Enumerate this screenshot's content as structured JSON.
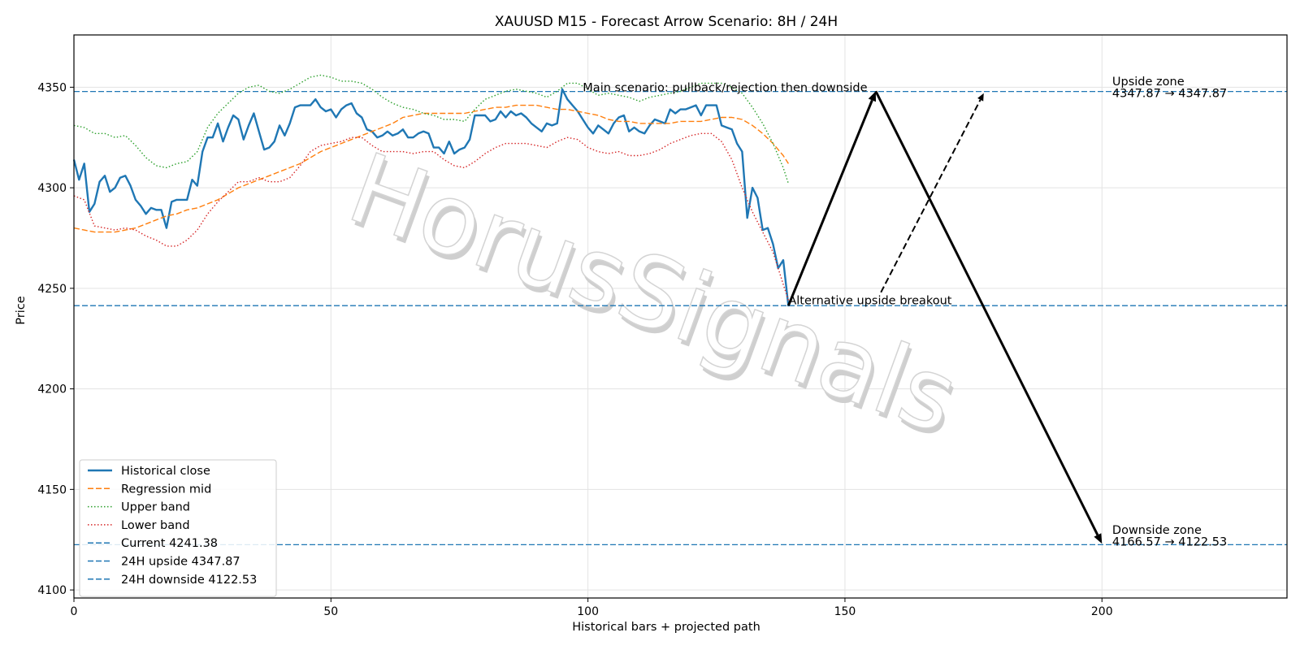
{
  "chart_data": {
    "type": "line",
    "title": "XAUUSD M15 - Forecast Arrow Scenario: 8H / 24H",
    "xlabel": "Historical bars + projected path",
    "ylabel": "Price",
    "xlim": [
      0,
      236
    ],
    "ylim": [
      4096,
      4376
    ],
    "xticks": [
      0,
      50,
      100,
      150,
      200
    ],
    "yticks": [
      4100,
      4150,
      4200,
      4250,
      4300,
      4350
    ],
    "grid": true,
    "legend_position": "lower-left",
    "watermark": "HorusSignals",
    "series": [
      {
        "name": "Historical close",
        "color": "#1f77b4",
        "style": "solid",
        "x": [
          0,
          1,
          2,
          3,
          4,
          5,
          6,
          7,
          8,
          9,
          10,
          11,
          12,
          13,
          14,
          15,
          16,
          17,
          18,
          19,
          20,
          21,
          22,
          23,
          24,
          25,
          26,
          27,
          28,
          29,
          30,
          31,
          32,
          33,
          34,
          35,
          36,
          37,
          38,
          39,
          40,
          41,
          42,
          43,
          44,
          45,
          46,
          47,
          48,
          49,
          50,
          51,
          52,
          53,
          54,
          55,
          56,
          57,
          58,
          59,
          60,
          61,
          62,
          63,
          64,
          65,
          66,
          67,
          68,
          69,
          70,
          71,
          72,
          73,
          74,
          75,
          76,
          77,
          78,
          79,
          80,
          81,
          82,
          83,
          84,
          85,
          86,
          87,
          88,
          89,
          90,
          91,
          92,
          93,
          94,
          95,
          96,
          97,
          98,
          99,
          100,
          101,
          102,
          103,
          104,
          105,
          106,
          107,
          108,
          109,
          110,
          111,
          112,
          113,
          114,
          115,
          116,
          117,
          118,
          119,
          120,
          121,
          122,
          123,
          124,
          125,
          126,
          127,
          128,
          129,
          130,
          131,
          132,
          133,
          134,
          135,
          136,
          137,
          138,
          139
        ],
        "values": [
          4314,
          4304,
          4312,
          4288,
          4292,
          4303,
          4306,
          4298,
          4300,
          4305,
          4306,
          4301,
          4294,
          4291,
          4287,
          4290,
          4289,
          4289,
          4280,
          4293,
          4294,
          4294,
          4294,
          4304,
          4301,
          4318,
          4325,
          4325,
          4332,
          4323,
          4330,
          4336,
          4334,
          4324,
          4331,
          4337,
          4328,
          4319,
          4320,
          4323,
          4331,
          4326,
          4332,
          4340,
          4341,
          4341,
          4341,
          4344,
          4340,
          4338,
          4339,
          4335,
          4339,
          4341,
          4342,
          4337,
          4335,
          4329,
          4328,
          4325,
          4326,
          4328,
          4326,
          4327,
          4329,
          4325,
          4325,
          4327,
          4328,
          4327,
          4320,
          4320,
          4317,
          4323,
          4317,
          4319,
          4320,
          4324,
          4336,
          4336,
          4336,
          4333,
          4334,
          4338,
          4335,
          4338,
          4336,
          4337,
          4335,
          4332,
          4330,
          4328,
          4332,
          4331,
          4332,
          4349,
          4344,
          4341,
          4338,
          4334,
          4330,
          4327,
          4331,
          4329,
          4327,
          4332,
          4335,
          4336,
          4328,
          4330,
          4328,
          4327,
          4331,
          4334,
          4333,
          4332,
          4339,
          4337,
          4339,
          4339,
          4340,
          4341,
          4336,
          4341,
          4341,
          4341,
          4331,
          4330,
          4329,
          4322,
          4318,
          4285,
          4300,
          4295,
          4279,
          4280,
          4272,
          4260,
          4264,
          4241
        ]
      },
      {
        "name": "Regression mid",
        "color": "#ff7f0e",
        "style": "dashed",
        "x": [
          0,
          2,
          4,
          6,
          8,
          10,
          12,
          14,
          16,
          18,
          20,
          22,
          24,
          26,
          28,
          30,
          32,
          34,
          36,
          38,
          40,
          42,
          44,
          46,
          48,
          50,
          52,
          54,
          56,
          58,
          60,
          62,
          64,
          66,
          68,
          70,
          72,
          74,
          76,
          78,
          80,
          82,
          84,
          86,
          88,
          90,
          92,
          94,
          96,
          98,
          100,
          102,
          104,
          106,
          108,
          110,
          112,
          114,
          116,
          118,
          120,
          122,
          124,
          126,
          128,
          130,
          132,
          134,
          136,
          138,
          139
        ],
        "values": [
          4280,
          4279,
          4278,
          4278,
          4278,
          4279,
          4280,
          4282,
          4284,
          4286,
          4287,
          4289,
          4290,
          4292,
          4294,
          4297,
          4300,
          4302,
          4304,
          4306,
          4308,
          4310,
          4312,
          4315,
          4318,
          4320,
          4322,
          4324,
          4326,
          4328,
          4330,
          4332,
          4335,
          4336,
          4337,
          4337,
          4337,
          4337,
          4337,
          4338,
          4339,
          4340,
          4340,
          4341,
          4341,
          4341,
          4340,
          4339,
          4339,
          4338,
          4337,
          4336,
          4334,
          4333,
          4333,
          4332,
          4332,
          4332,
          4332,
          4333,
          4333,
          4333,
          4334,
          4335,
          4335,
          4334,
          4331,
          4327,
          4322,
          4316,
          4312
        ]
      },
      {
        "name": "Upper band",
        "color": "#2ca02c",
        "style": "dotted",
        "x": [
          0,
          2,
          4,
          6,
          8,
          10,
          12,
          14,
          16,
          18,
          20,
          22,
          24,
          26,
          28,
          30,
          32,
          34,
          36,
          38,
          40,
          42,
          44,
          46,
          48,
          50,
          52,
          54,
          56,
          58,
          60,
          62,
          64,
          66,
          68,
          70,
          72,
          74,
          76,
          78,
          80,
          82,
          84,
          86,
          88,
          90,
          92,
          94,
          96,
          98,
          100,
          102,
          104,
          106,
          108,
          110,
          112,
          114,
          116,
          118,
          120,
          122,
          124,
          126,
          128,
          130,
          132,
          134,
          136,
          138,
          139
        ],
        "values": [
          4331,
          4330,
          4327,
          4327,
          4325,
          4326,
          4321,
          4315,
          4311,
          4310,
          4312,
          4313,
          4318,
          4330,
          4337,
          4342,
          4347,
          4350,
          4351,
          4348,
          4347,
          4349,
          4352,
          4355,
          4356,
          4355,
          4353,
          4353,
          4352,
          4349,
          4345,
          4342,
          4340,
          4339,
          4337,
          4336,
          4334,
          4334,
          4333,
          4339,
          4344,
          4346,
          4348,
          4349,
          4348,
          4347,
          4345,
          4348,
          4352,
          4352,
          4349,
          4346,
          4347,
          4346,
          4345,
          4343,
          4345,
          4346,
          4347,
          4348,
          4350,
          4352,
          4352,
          4352,
          4350,
          4347,
          4340,
          4332,
          4322,
          4310,
          4302
        ]
      },
      {
        "name": "Lower band",
        "color": "#d62728",
        "style": "dotted",
        "x": [
          0,
          2,
          4,
          6,
          8,
          10,
          12,
          14,
          16,
          18,
          20,
          22,
          24,
          26,
          28,
          30,
          32,
          34,
          36,
          38,
          40,
          42,
          44,
          46,
          48,
          50,
          52,
          54,
          56,
          58,
          60,
          62,
          64,
          66,
          68,
          70,
          72,
          74,
          76,
          78,
          80,
          82,
          84,
          86,
          88,
          90,
          92,
          94,
          96,
          98,
          100,
          102,
          104,
          106,
          108,
          110,
          112,
          114,
          116,
          118,
          120,
          122,
          124,
          126,
          128,
          130,
          132,
          134,
          136,
          138,
          139
        ],
        "values": [
          4296,
          4294,
          4281,
          4280,
          4279,
          4280,
          4279,
          4276,
          4274,
          4271,
          4271,
          4274,
          4279,
          4287,
          4293,
          4298,
          4303,
          4303,
          4305,
          4303,
          4303,
          4305,
          4311,
          4318,
          4321,
          4322,
          4323,
          4325,
          4325,
          4321,
          4318,
          4318,
          4318,
          4317,
          4318,
          4318,
          4314,
          4311,
          4310,
          4313,
          4317,
          4320,
          4322,
          4322,
          4322,
          4321,
          4320,
          4323,
          4325,
          4324,
          4320,
          4318,
          4317,
          4318,
          4316,
          4316,
          4317,
          4319,
          4322,
          4324,
          4326,
          4327,
          4327,
          4323,
          4314,
          4300,
          4288,
          4278,
          4268,
          4252,
          4244
        ]
      }
    ],
    "reference_lines": [
      {
        "name": "Current 4241.38",
        "y": 4241.38,
        "color": "#1f77b4",
        "style": "dashed"
      },
      {
        "name": "24H upside 4347.87",
        "y": 4347.87,
        "color": "#1f77b4",
        "style": "dashed"
      },
      {
        "name": "24H downside 4122.53",
        "y": 4122.53,
        "color": "#1f77b4",
        "style": "dashed"
      }
    ],
    "arrows": [
      {
        "from": [
          139,
          4241.38
        ],
        "to": [
          156,
          4348
        ],
        "style": "solid"
      },
      {
        "from": [
          156,
          4348
        ],
        "to": [
          200,
          4123
        ],
        "style": "solid"
      },
      {
        "from": [
          157,
          4248
        ],
        "to": [
          177,
          4347
        ],
        "style": "dashed"
      }
    ],
    "annotations": [
      {
        "text": "Main scenario: pullback/rejection then downside",
        "x": 99,
        "y": 4348
      },
      {
        "text": "Alternative upside breakout",
        "x": 139,
        "y": 4242
      },
      {
        "text": "Upside zone",
        "x": 202,
        "y": 4351
      },
      {
        "text": "4347.87 → 4347.87",
        "x": 202,
        "y": 4345
      },
      {
        "text": "Downside zone",
        "x": 202,
        "y": 4128
      },
      {
        "text": "4166.57 → 4122.53",
        "x": 202,
        "y": 4122
      }
    ]
  }
}
